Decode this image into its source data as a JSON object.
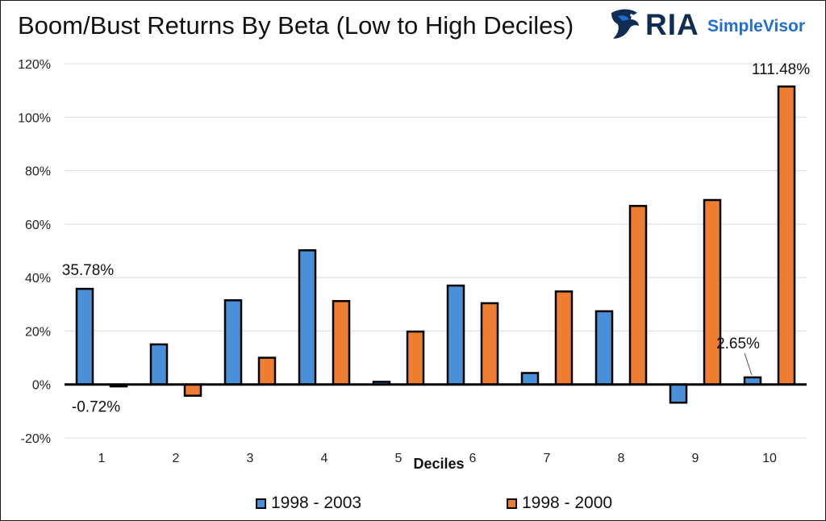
{
  "title": "Boom/Bust Returns By Beta (Low to High Deciles)",
  "brand": {
    "name": "RIA",
    "product": "SimpleVisor"
  },
  "colors": {
    "series1": "#4a90d9",
    "series2": "#ed7d31",
    "outline": "#000000"
  },
  "chart_data": {
    "type": "bar",
    "title": "Boom/Bust Returns By Beta (Low to High Deciles)",
    "xlabel": "Deciles",
    "ylabel": "",
    "categories": [
      "1",
      "2",
      "3",
      "4",
      "5",
      "6",
      "7",
      "8",
      "9",
      "10"
    ],
    "series": [
      {
        "name": "1998 - 2003",
        "values": [
          35.78,
          15.0,
          31.5,
          50.2,
          1.0,
          37.0,
          4.3,
          27.4,
          -6.8,
          2.65
        ]
      },
      {
        "name": "1998 - 2000",
        "values": [
          -0.72,
          -4.2,
          10.0,
          31.2,
          19.8,
          30.4,
          34.8,
          66.8,
          69.0,
          111.48
        ]
      }
    ],
    "ylim": [
      -20,
      120
    ],
    "yticks": [
      -20,
      0,
      20,
      40,
      60,
      80,
      100,
      120
    ],
    "ytick_labels": [
      "-20%",
      "0%",
      "20%",
      "40%",
      "60%",
      "80%",
      "100%",
      "120%"
    ],
    "data_labels": [
      {
        "series": 0,
        "index": 0,
        "text": "35.78%"
      },
      {
        "series": 1,
        "index": 0,
        "text": "-0.72%"
      },
      {
        "series": 0,
        "index": 9,
        "text": "2.65%"
      },
      {
        "series": 1,
        "index": 9,
        "text": "111.48%"
      }
    ],
    "grid": true,
    "legend": "bottom"
  }
}
